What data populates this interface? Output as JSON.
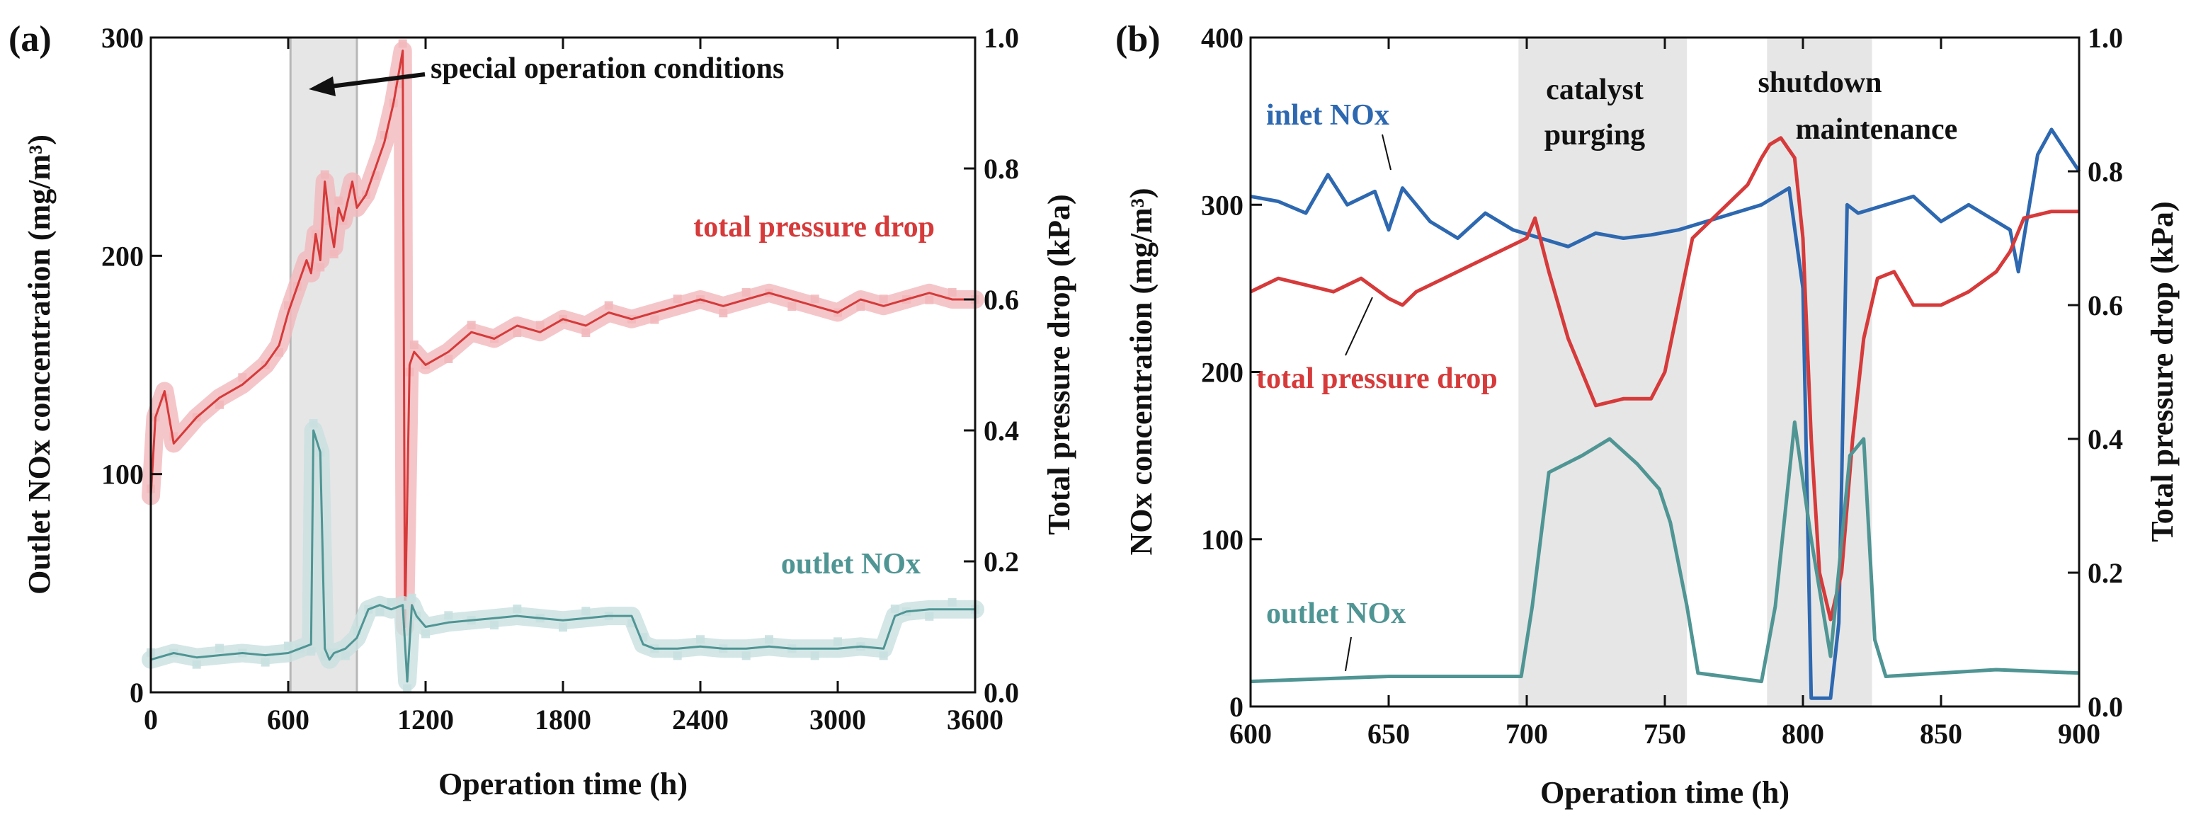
{
  "figure": {
    "colors": {
      "red": "#d63a3a",
      "red_light": "#f2b8bb",
      "teal": "#4f9594",
      "teal_light": "#c9e0e0",
      "blue": "#2d68b0",
      "shade": "#e6e6e6",
      "axis": "#111111"
    }
  },
  "chart_data": [
    {
      "id": "a",
      "type": "line",
      "panel_label": "(a)",
      "xlabel": "Operation time (h)",
      "ylabel_left": "Outlet NOx concentration (mg/m³)",
      "ylabel_right": "Total pressure drop (kPa)",
      "xlim": [
        0,
        3600
      ],
      "ylim_left": [
        0,
        300
      ],
      "ylim_right": [
        0,
        1.0
      ],
      "xticks": [
        0,
        600,
        1200,
        1800,
        2400,
        3000,
        3600
      ],
      "xtick_labels": [
        "0",
        "600",
        "1200",
        "1800",
        "2400",
        "3000",
        "3600"
      ],
      "yticks_left": [
        0,
        100,
        200,
        300
      ],
      "ytick_labels_left": [
        "0",
        "100",
        "200",
        "300"
      ],
      "yticks_right": [
        0,
        0.2,
        0.4,
        0.6,
        0.8,
        1.0
      ],
      "ytick_labels_right": [
        "0.0",
        "0.2",
        "0.4",
        "0.6",
        "0.8",
        "1.0"
      ],
      "shaded_regions": [
        [
          610,
          900
        ]
      ],
      "series": [
        {
          "name": "total pressure drop",
          "axis": "right",
          "x": [
            0,
            20,
            60,
            100,
            200,
            300,
            400,
            500,
            560,
            600,
            640,
            680,
            700,
            720,
            740,
            760,
            780,
            800,
            820,
            840,
            880,
            900,
            940,
            980,
            1020,
            1060,
            1080,
            1100,
            1110,
            1130,
            1150,
            1200,
            1300,
            1400,
            1500,
            1600,
            1700,
            1800,
            1900,
            2000,
            2100,
            2200,
            2300,
            2400,
            2500,
            2600,
            2700,
            2800,
            2900,
            3000,
            3100,
            3200,
            3300,
            3400,
            3500,
            3600
          ],
          "y": [
            0.3,
            0.42,
            0.46,
            0.38,
            0.42,
            0.45,
            0.47,
            0.5,
            0.53,
            0.58,
            0.62,
            0.66,
            0.64,
            0.7,
            0.66,
            0.78,
            0.72,
            0.68,
            0.74,
            0.72,
            0.78,
            0.74,
            0.76,
            0.8,
            0.84,
            0.9,
            0.94,
            0.98,
            0.1,
            0.5,
            0.52,
            0.5,
            0.52,
            0.55,
            0.54,
            0.56,
            0.55,
            0.57,
            0.56,
            0.58,
            0.57,
            0.58,
            0.59,
            0.6,
            0.59,
            0.6,
            0.61,
            0.6,
            0.59,
            0.58,
            0.6,
            0.59,
            0.6,
            0.61,
            0.6,
            0.6
          ]
        },
        {
          "name": "outlet NOx",
          "axis": "left",
          "x": [
            0,
            100,
            200,
            300,
            400,
            500,
            600,
            650,
            700,
            710,
            740,
            760,
            780,
            800,
            850,
            900,
            950,
            1000,
            1050,
            1100,
            1120,
            1140,
            1160,
            1200,
            1300,
            1400,
            1500,
            1600,
            1700,
            1800,
            1900,
            2000,
            2100,
            2150,
            2200,
            2300,
            2400,
            2500,
            2600,
            2700,
            2800,
            2900,
            3000,
            3100,
            3200,
            3250,
            3300,
            3400,
            3500,
            3600
          ],
          "y": [
            15,
            18,
            16,
            17,
            18,
            17,
            18,
            20,
            22,
            120,
            110,
            20,
            15,
            18,
            20,
            25,
            38,
            40,
            38,
            40,
            5,
            40,
            35,
            30,
            32,
            33,
            34,
            35,
            34,
            33,
            34,
            35,
            35,
            22,
            20,
            20,
            21,
            20,
            20,
            21,
            20,
            20,
            20,
            21,
            20,
            35,
            37,
            38,
            38,
            38
          ]
        }
      ],
      "annotations": [
        {
          "text": "special operation conditions"
        },
        {
          "text": "total pressure drop"
        },
        {
          "text": "outlet NOx"
        }
      ]
    },
    {
      "id": "b",
      "type": "line",
      "panel_label": "(b)",
      "xlabel": "Operation time (h)",
      "ylabel_left": "NOx concentration (mg/m³)",
      "ylabel_right": "Total pressure drop (kPa)",
      "xlim": [
        600,
        900
      ],
      "ylim_left": [
        0,
        400
      ],
      "ylim_right": [
        0,
        1.0
      ],
      "xticks": [
        600,
        650,
        700,
        750,
        800,
        850,
        900
      ],
      "xtick_labels": [
        "600",
        "650",
        "700",
        "750",
        "800",
        "850",
        "900"
      ],
      "yticks_left": [
        0,
        100,
        200,
        300,
        400
      ],
      "ytick_labels_left": [
        "0",
        "100",
        "200",
        "300",
        "400"
      ],
      "yticks_right": [
        0,
        0.2,
        0.4,
        0.6,
        0.8,
        1.0
      ],
      "ytick_labels_right": [
        "0.0",
        "0.2",
        "0.4",
        "0.6",
        "0.8",
        "1.0"
      ],
      "shaded_regions": [
        [
          697,
          758
        ],
        [
          787,
          825
        ]
      ],
      "series": [
        {
          "name": "inlet NOx",
          "axis": "left",
          "x": [
            600,
            610,
            620,
            628,
            635,
            645,
            650,
            655,
            665,
            675,
            685,
            695,
            705,
            715,
            725,
            735,
            745,
            755,
            765,
            775,
            785,
            795,
            800,
            803,
            806,
            810,
            813,
            816,
            820,
            830,
            840,
            850,
            860,
            870,
            875,
            878,
            885,
            890,
            900
          ],
          "y": [
            305,
            302,
            295,
            318,
            300,
            308,
            285,
            310,
            290,
            280,
            295,
            285,
            280,
            275,
            283,
            280,
            282,
            285,
            290,
            295,
            300,
            310,
            250,
            5,
            5,
            5,
            50,
            300,
            295,
            300,
            305,
            290,
            300,
            290,
            285,
            260,
            330,
            345,
            320
          ]
        },
        {
          "name": "total pressure drop",
          "axis": "right",
          "x": [
            600,
            610,
            620,
            630,
            640,
            650,
            655,
            660,
            670,
            680,
            690,
            700,
            703,
            708,
            715,
            725,
            735,
            745,
            750,
            755,
            760,
            770,
            780,
            785,
            788,
            792,
            797,
            800,
            803,
            806,
            810,
            814,
            818,
            822,
            827,
            833,
            840,
            850,
            860,
            870,
            875,
            880,
            890,
            900
          ],
          "y": [
            0.62,
            0.64,
            0.63,
            0.62,
            0.64,
            0.61,
            0.6,
            0.62,
            0.64,
            0.66,
            0.68,
            0.7,
            0.73,
            0.65,
            0.55,
            0.45,
            0.46,
            0.46,
            0.5,
            0.6,
            0.7,
            0.74,
            0.78,
            0.82,
            0.84,
            0.85,
            0.82,
            0.7,
            0.4,
            0.2,
            0.13,
            0.2,
            0.4,
            0.55,
            0.64,
            0.65,
            0.6,
            0.6,
            0.62,
            0.65,
            0.68,
            0.73,
            0.74,
            0.74
          ]
        },
        {
          "name": "outlet NOx",
          "axis": "left",
          "x": [
            600,
            650,
            698,
            702,
            708,
            720,
            730,
            740,
            748,
            752,
            758,
            762,
            785,
            790,
            797,
            803,
            810,
            817,
            822,
            826,
            830,
            870,
            900
          ],
          "y": [
            15,
            18,
            18,
            60,
            140,
            150,
            160,
            145,
            130,
            110,
            60,
            20,
            15,
            60,
            170,
            100,
            30,
            150,
            160,
            40,
            18,
            22,
            20
          ]
        }
      ],
      "annotations": [
        {
          "text": "inlet NOx"
        },
        {
          "text": "catalyst"
        },
        {
          "text": "purging"
        },
        {
          "text": "shutdown"
        },
        {
          "text": "maintenance"
        },
        {
          "text": "total pressure drop"
        },
        {
          "text": "outlet NOx"
        }
      ]
    }
  ]
}
